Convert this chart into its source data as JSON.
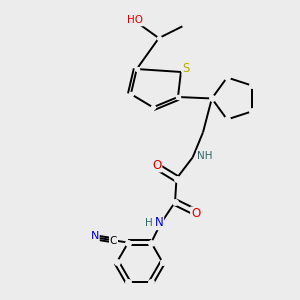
{
  "background_color": "#ececec",
  "atom_colors": {
    "C": "#000000",
    "N": "#0000cc",
    "O": "#dd0000",
    "S": "#bbaa00",
    "H": "#336666"
  },
  "bond_color": "#000000",
  "bond_width": 1.4,
  "fig_width": 3.0,
  "fig_height": 3.0,
  "dpi": 100
}
